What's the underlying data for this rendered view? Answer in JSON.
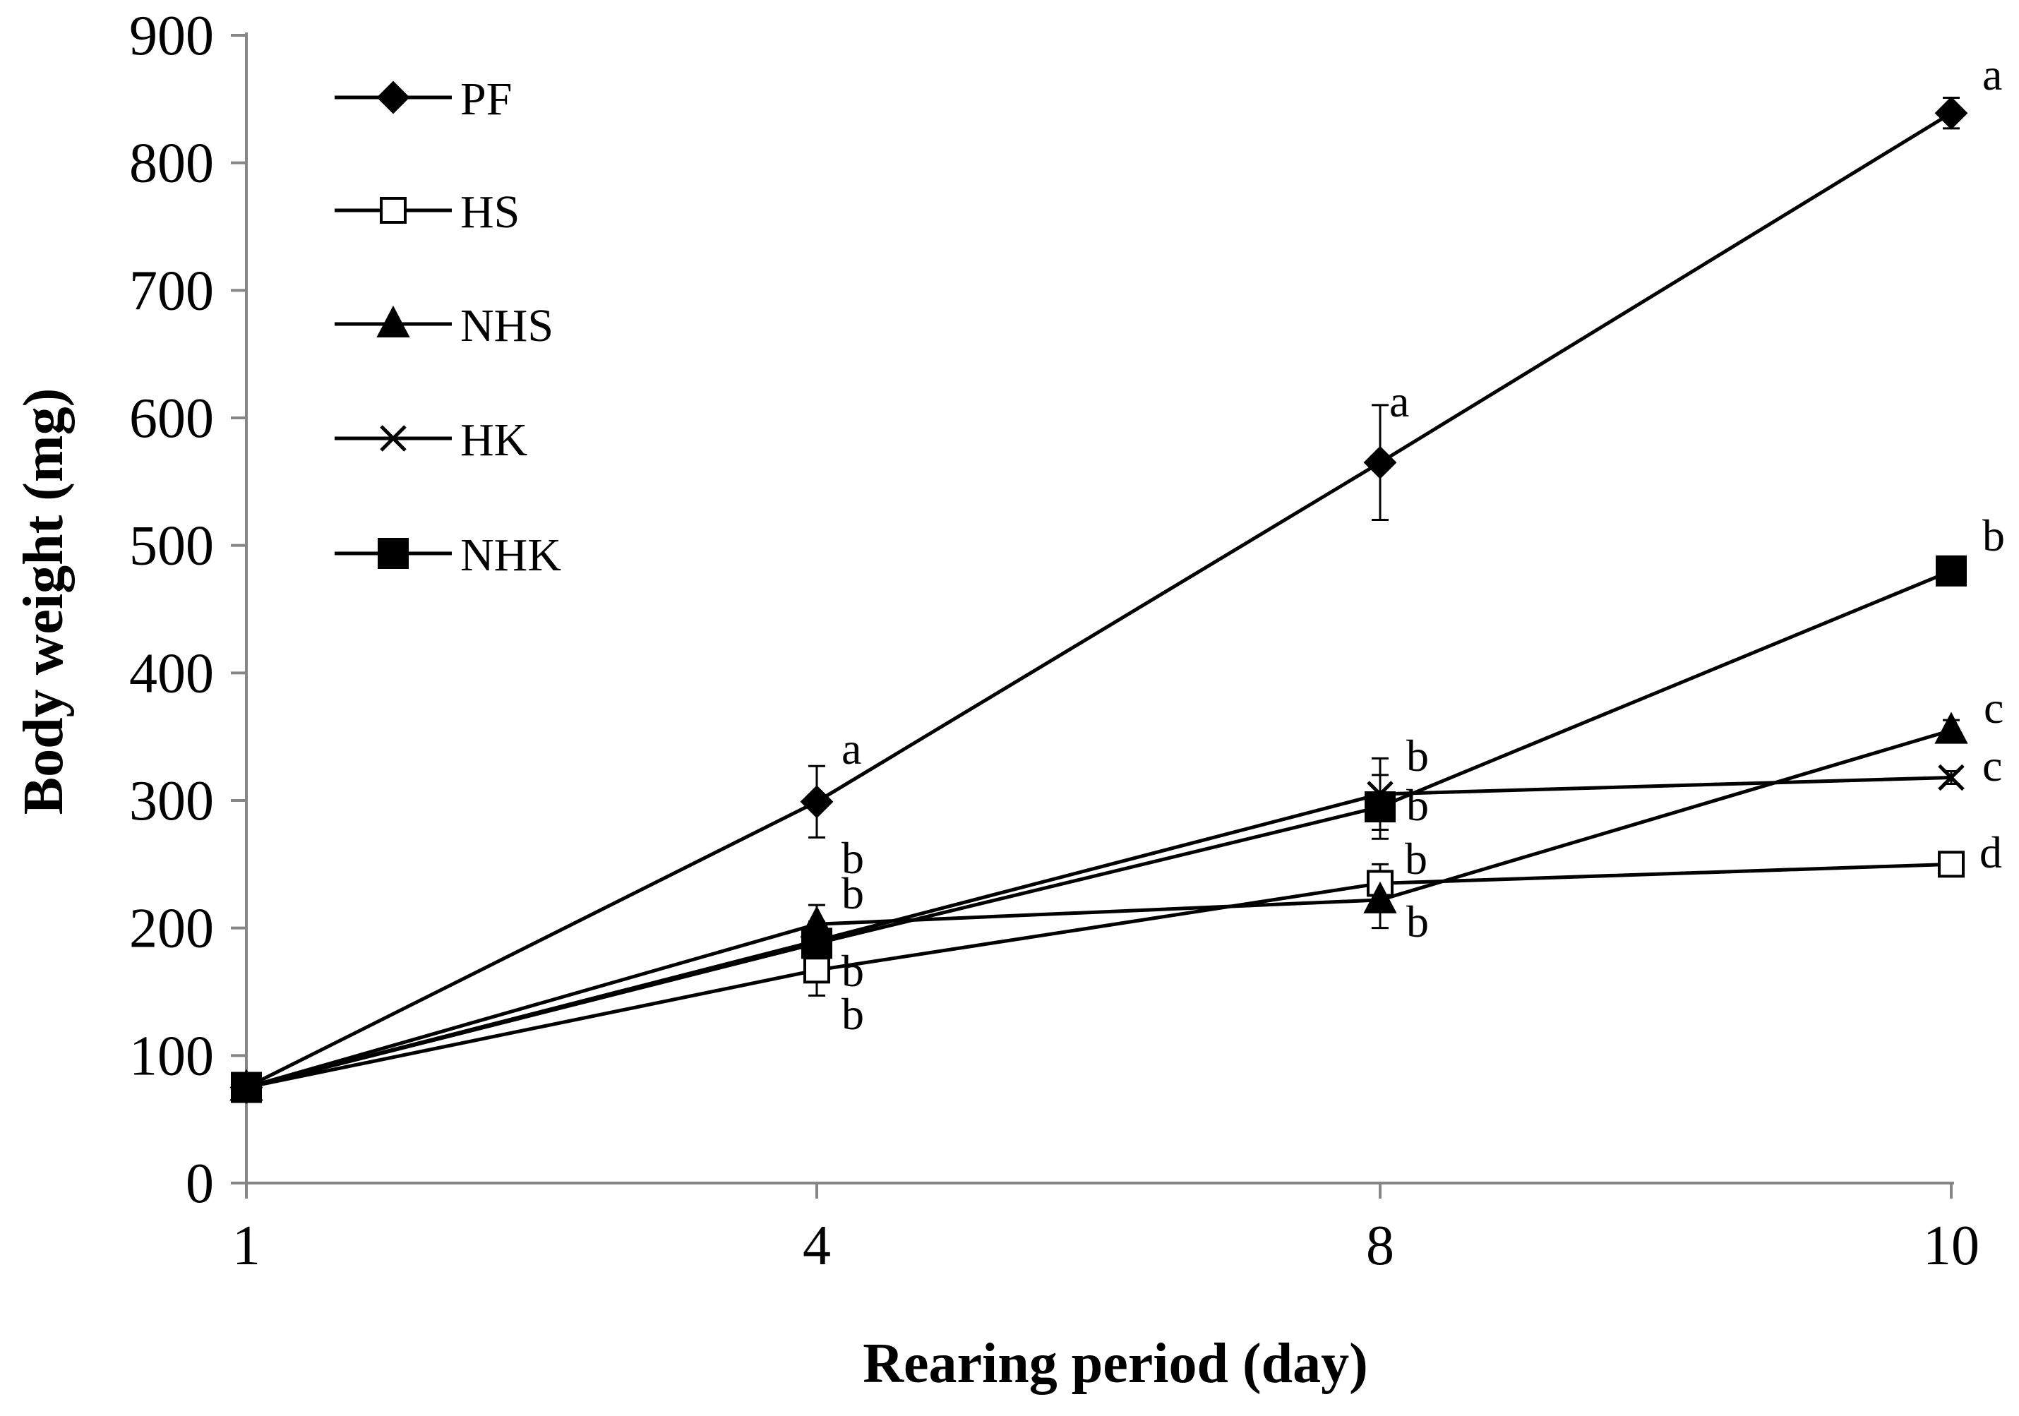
{
  "chart_data": {
    "type": "line",
    "title": "",
    "xlabel": "Rearing period (day)",
    "ylabel": "Body weight (mg)",
    "categories": [
      "1",
      "4",
      "8",
      "10"
    ],
    "ylim": [
      0,
      900
    ],
    "yticks": [
      "0",
      "100",
      "200",
      "300",
      "400",
      "500",
      "600",
      "700",
      "800",
      "900"
    ],
    "legend_position": "top-left",
    "grid": false,
    "series": [
      {
        "name": "PF",
        "marker": "diamond",
        "values": [
          75,
          299,
          565,
          839
        ],
        "errors": [
          0,
          28,
          45,
          12
        ],
        "labels": [
          "",
          "a",
          "a",
          "a"
        ]
      },
      {
        "name": "HS",
        "marker": "square-open",
        "values": [
          75,
          167,
          235,
          250
        ],
        "errors": [
          0,
          20,
          15,
          5
        ],
        "labels": [
          "",
          "b",
          "b",
          "d"
        ]
      },
      {
        "name": "NHS",
        "marker": "triangle",
        "values": [
          75,
          203,
          222,
          355
        ],
        "errors": [
          0,
          15,
          22,
          8
        ],
        "labels": [
          "",
          "b",
          "b",
          "c"
        ]
      },
      {
        "name": "HK",
        "marker": "x",
        "values": [
          75,
          190,
          305,
          318
        ],
        "errors": [
          0,
          15,
          28,
          5
        ],
        "labels": [
          "",
          "b",
          "b",
          "c"
        ]
      },
      {
        "name": "NHK",
        "marker": "square-filled",
        "values": [
          75,
          188,
          295,
          480
        ],
        "errors": [
          0,
          15,
          25,
          5
        ],
        "labels": [
          "",
          "b",
          "b",
          "b"
        ]
      }
    ]
  }
}
